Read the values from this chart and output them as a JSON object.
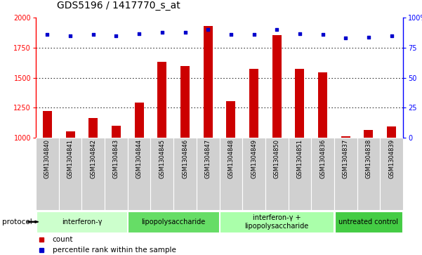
{
  "title": "GDS5196 / 1417770_s_at",
  "samples": [
    "GSM1304840",
    "GSM1304841",
    "GSM1304842",
    "GSM1304843",
    "GSM1304844",
    "GSM1304845",
    "GSM1304846",
    "GSM1304847",
    "GSM1304848",
    "GSM1304849",
    "GSM1304850",
    "GSM1304851",
    "GSM1304836",
    "GSM1304837",
    "GSM1304838",
    "GSM1304839"
  ],
  "counts": [
    1220,
    1055,
    1165,
    1100,
    1295,
    1635,
    1600,
    1930,
    1305,
    1575,
    1855,
    1575,
    1545,
    1010,
    1065,
    1095
  ],
  "percentiles": [
    86,
    85,
    86,
    85,
    87,
    88,
    88,
    90,
    86,
    86,
    90,
    87,
    86,
    83,
    84,
    85
  ],
  "groups": [
    {
      "label": "interferon-γ",
      "start": 0,
      "end": 4,
      "color": "#ccffcc"
    },
    {
      "label": "lipopolysaccharide",
      "start": 4,
      "end": 8,
      "color": "#66dd66"
    },
    {
      "label": "interferon-γ +\nlipopolysaccharide",
      "start": 8,
      "end": 13,
      "color": "#aaffaa"
    },
    {
      "label": "untreated control",
      "start": 13,
      "end": 16,
      "color": "#44cc44"
    }
  ],
  "ylim_left": [
    1000,
    2000
  ],
  "ylim_right": [
    0,
    100
  ],
  "yticks_left": [
    1000,
    1250,
    1500,
    1750,
    2000
  ],
  "yticks_right": [
    0,
    25,
    50,
    75,
    100
  ],
  "bar_color": "#cc0000",
  "dot_color": "#0000cc",
  "bg_color": "#ffffff",
  "plot_bg": "#ffffff",
  "grid_color": "#000000",
  "sample_box_color": "#d0d0d0",
  "title_fontsize": 10,
  "tick_fontsize": 7,
  "label_fontsize": 8
}
